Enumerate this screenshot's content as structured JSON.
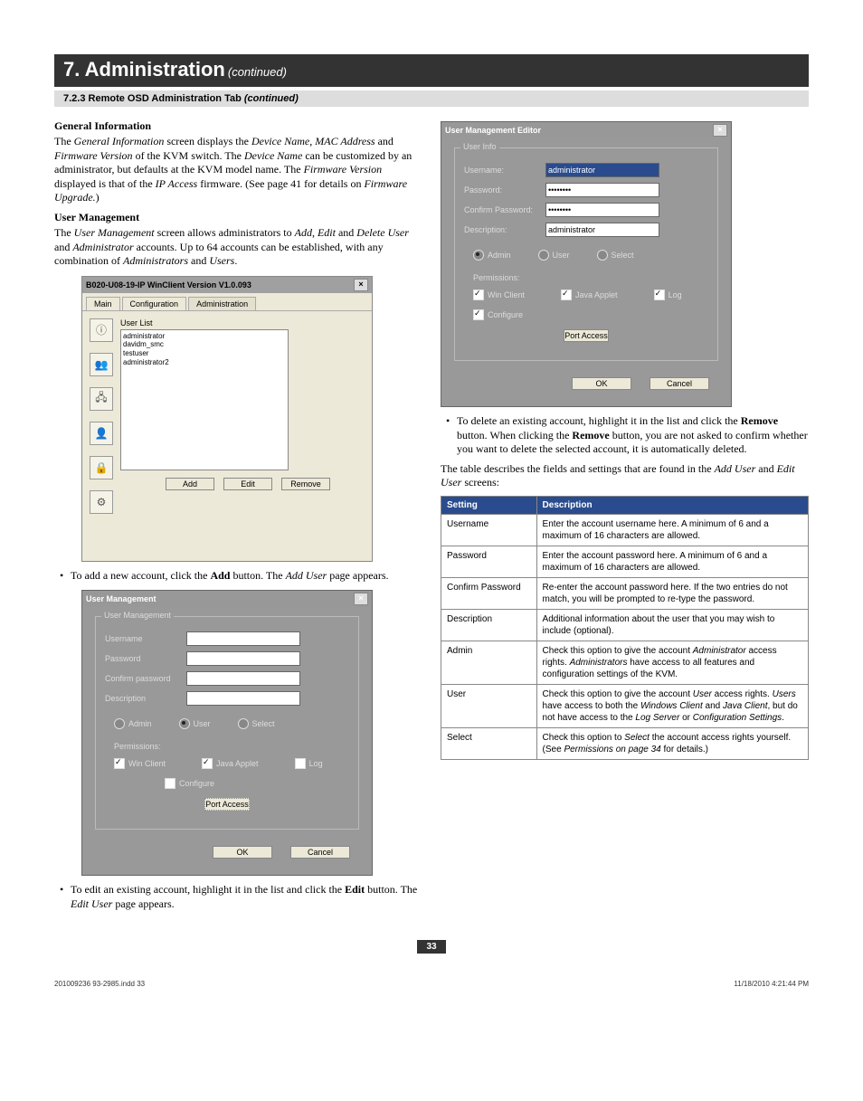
{
  "chapter": {
    "title": "7. Administration",
    "cont": "(continued)"
  },
  "subhead": {
    "num": "7.2.3 Remote OSD Administration Tab ",
    "ital": "(continued)"
  },
  "h_gen": "General Information",
  "h_um": "User Management",
  "p_gen": "The <i>General Information</i> screen displays the <i>Device Name</i>, <i>MAC Address</i> and <i>Firmware Version</i> of the KVM switch. The <i>Device Name</i> can be customized by an administrator, but defaults at the KVM model name. The <i>Firmware Version</i> displayed is that of the <i>IP Access</i> firmware. (See page 41 for details on <i>Firmware Upgrade.</i>)",
  "p_um": "The <i>User Management</i> screen allows administrators to <i>Add</i>, <i>Edit</i> and <i>Delete User</i> and <i>Administrator</i> accounts. Up to 64 accounts can be established, with any combination of <i>Administrators</i> and <i>Users</i>.",
  "b_add": "To add a new account, click the <b>Add</b> button. The <i>Add User</i> page appears.",
  "b_edit": "To edit an existing account, highlight it in the list and click the <b>Edit</b> button. The <i>Edit User</i> page appears.",
  "b_del": "To delete an existing account, highlight it in the list and click the <b>Remove</b> button. When clicking the <b>Remove</b> button, you are not asked to confirm whether you want to delete the selected account, it is automatically deleted.",
  "p_table": "The table describes the fields and settings that are found in the <i>Add User</i> and <i>Edit User</i> screens:",
  "shot1": {
    "title": "B020-U08-19-IP WinClient Version V1.0.093",
    "tabs": [
      "Main",
      "Configuration",
      "Administration"
    ],
    "ul_label": "User List",
    "users": [
      "administrator",
      "davidm_smc",
      "testuser",
      "administrator2"
    ],
    "btns": [
      "Add",
      "Edit",
      "Remove"
    ]
  },
  "shot2": {
    "title": "User Management",
    "legend": "User Management",
    "labels": {
      "un": "Username",
      "pw": "Password",
      "cpw": "Confirm password",
      "de": "Description",
      "perm": "Permissions:"
    },
    "radios": [
      "Admin",
      "User",
      "Select"
    ],
    "checks": [
      "Win Client",
      "Java Applet",
      "Log",
      "Configure"
    ],
    "port": "Port Access",
    "ok": "OK",
    "cancel": "Cancel"
  },
  "shot3": {
    "title": "User Management Editor",
    "legend": "User Info",
    "labels": {
      "un": "Username:",
      "pw": "Password:",
      "cpw": "Confirm Password:",
      "de": "Description:",
      "perm": "Permissions:"
    },
    "vals": {
      "un": "administrator",
      "de": "administrator"
    },
    "radios": [
      "Admin",
      "User",
      "Select"
    ],
    "checks": [
      "Win Client",
      "Java Applet",
      "Log",
      "Configure"
    ],
    "port": "Port Access",
    "ok": "OK",
    "cancel": "Cancel"
  },
  "table": {
    "headers": [
      "Setting",
      "Description"
    ],
    "rows": [
      [
        "Username",
        "Enter the account username here. A minimum of 6 and a maximum of 16 characters are allowed."
      ],
      [
        "Password",
        "Enter the account password here. A minimum of 6 and a maximum of 16 characters are allowed."
      ],
      [
        "Confirm Password",
        "Re-enter the account password here. If the two entries do not match, you will be prompted to re-type the password."
      ],
      [
        "Description",
        "Additional information about the user that you may wish to include (optional)."
      ],
      [
        "Admin",
        "Check this option to give the account <i>Administrator</i> access rights. <i>Administrators</i> have access to all features and configuration settings of the KVM."
      ],
      [
        "User",
        "Check this option to give the account <i>User</i> access rights. <i>Users</i> have access to both the <i>Windows Client</i> and <i>Java Client</i>, but do not have access to the <i>Log Server</i> or <i>Configuration Settings</i>."
      ],
      [
        "Select",
        "Check this option to <i>Select</i> the account access rights yourself. (See <i>Permissions on page 34</i> for details.)"
      ]
    ]
  },
  "pagenum": "33",
  "footer": {
    "left": "201009236 93-2985.indd   33",
    "right": "11/18/2010   4:21:44 PM"
  }
}
